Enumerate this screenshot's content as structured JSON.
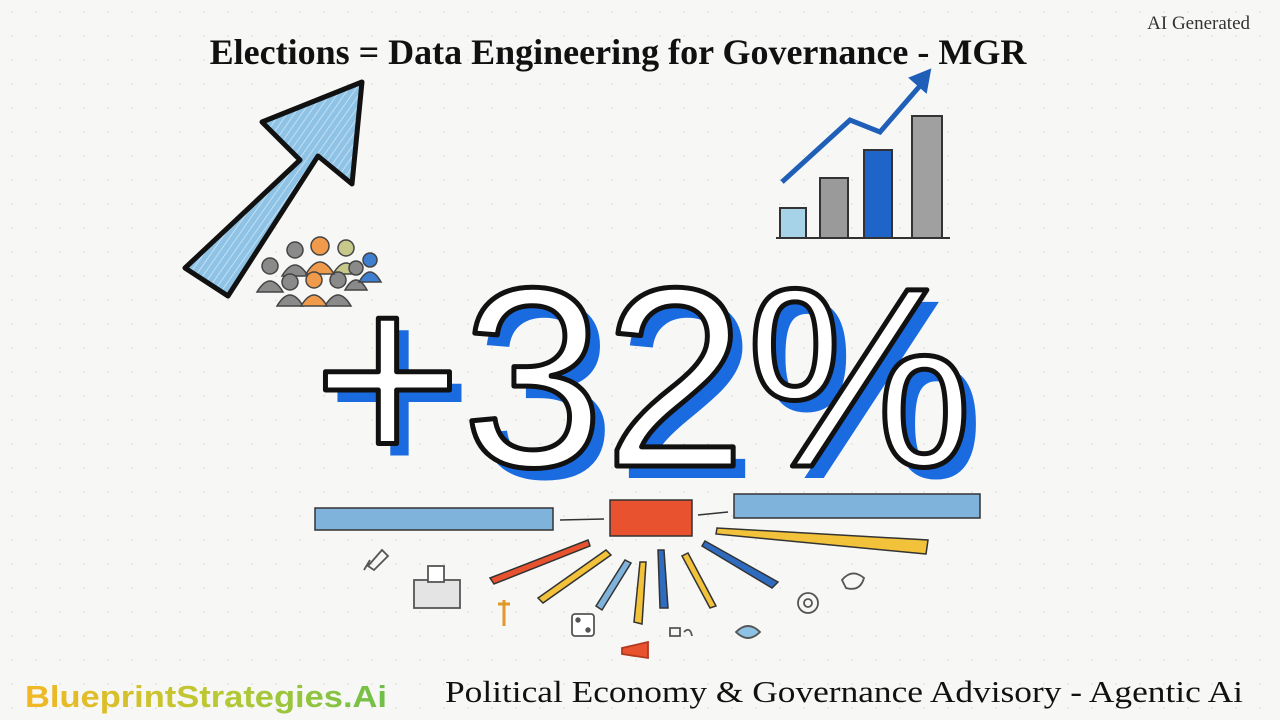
{
  "header": {
    "title": "Elections = Data Engineering for Governance - MGR",
    "badge": "AI Generated"
  },
  "headline": {
    "text": "+32%"
  },
  "footer": {
    "brand": "BlueprintStrategies.Ai",
    "tagline": "Political Economy & Governance Advisory - Agentic Ai"
  }
}
